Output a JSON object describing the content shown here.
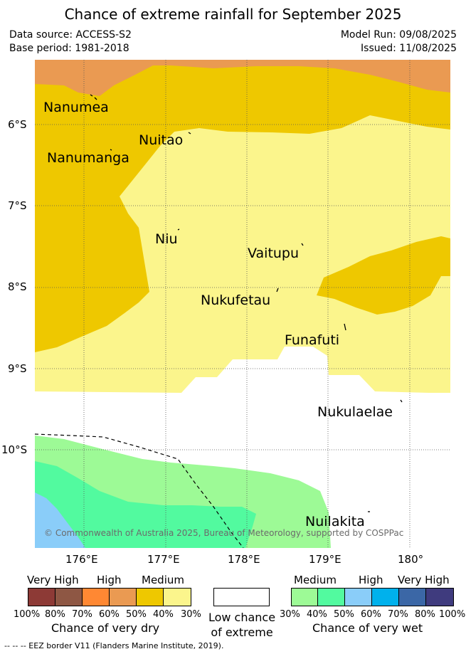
{
  "title": "Chance of extreme rainfall for September 2025",
  "meta": {
    "data_source": "Data source: ACCESS-S2",
    "base_period": "Base period: 1981-2018",
    "model_run": "Model Run: 09/08/2025",
    "issued": "Issued: 11/08/2025"
  },
  "axes": {
    "lat_labels": [
      "6°S",
      "7°S",
      "8°S",
      "9°S",
      "10°S"
    ],
    "lon_labels": [
      "176°E",
      "177°E",
      "178°E",
      "179°E",
      "180°"
    ]
  },
  "islands": [
    {
      "name": "Nanumea"
    },
    {
      "name": "Nuitao"
    },
    {
      "name": "Nanumanga"
    },
    {
      "name": "Niu"
    },
    {
      "name": "Vaitupu"
    },
    {
      "name": "Nukufetau"
    },
    {
      "name": "Funafuti"
    },
    {
      "name": "Nukulaelae"
    },
    {
      "name": "Nuilakita"
    }
  ],
  "copyright": "© Commonwealth of Australia 2025, Bureau of Meteorology, supported by COSPPac",
  "legend": {
    "dry": {
      "levels": [
        {
          "label": "Very High",
          "colors": [
            "#8d3a36",
            "#8e5744"
          ]
        },
        {
          "label": "High",
          "colors": [
            "#ff8833",
            "#ea9a52"
          ]
        },
        {
          "label": "Medium",
          "colors": [
            "#eec800",
            "#fbf58c"
          ]
        }
      ],
      "ticks": [
        "100%",
        "80%",
        "70%",
        "60%",
        "50%",
        "40%",
        "30%"
      ],
      "caption": "Chance of very dry"
    },
    "low": {
      "color": "#ffffff",
      "caption_line1": "Low chance",
      "caption_line2": "of extreme"
    },
    "wet": {
      "levels": [
        {
          "label": "Medium",
          "colors": [
            "#9dfa96",
            "#52fa9f"
          ]
        },
        {
          "label": "High",
          "colors": [
            "#8acdf9",
            "#00b1ec"
          ]
        },
        {
          "label": "Very High",
          "colors": [
            "#3b67a6",
            "#3f3b7e"
          ]
        }
      ],
      "ticks": [
        "30%",
        "40%",
        "50%",
        "60%",
        "70%",
        "80%",
        "100%"
      ],
      "caption": "Chance of very wet"
    }
  },
  "footer": "--  --  -- EEZ border V11 (Flanders Marine Institute, 2019)."
}
